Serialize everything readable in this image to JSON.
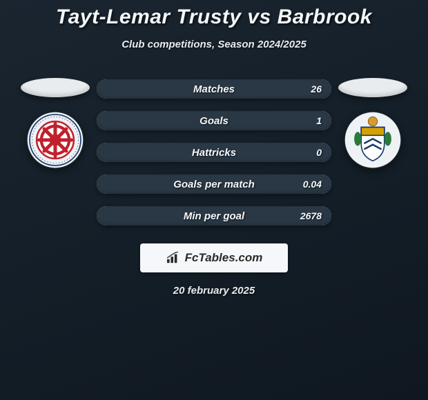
{
  "title": "Tayt-Lemar Trusty vs Barbrook",
  "subtitle": "Club competitions, Season 2024/2025",
  "date": "20 february 2025",
  "brand": "FcTables.com",
  "colors": {
    "bar_bg": "#d8dde1",
    "fill": "#2a3845",
    "text": "#f5f7fa"
  },
  "stats": [
    {
      "label": "Matches",
      "value": "26",
      "fill_pct": 100
    },
    {
      "label": "Goals",
      "value": "1",
      "fill_pct": 100
    },
    {
      "label": "Hattricks",
      "value": "0",
      "fill_pct": 100
    },
    {
      "label": "Goals per match",
      "value": "0.04",
      "fill_pct": 100
    },
    {
      "label": "Min per goal",
      "value": "2678",
      "fill_pct": 100
    }
  ],
  "left_crest": {
    "outer_ring": "#ffffff",
    "inner_bg": "#ffffff",
    "accent": "#c1202c",
    "text_ring": "#1a3a6a"
  },
  "right_crest": {
    "shield_top": "#d4a200",
    "shield_bottom": "#ffffff",
    "trim": "#1a3a6a",
    "ball": "#d99a2b"
  }
}
